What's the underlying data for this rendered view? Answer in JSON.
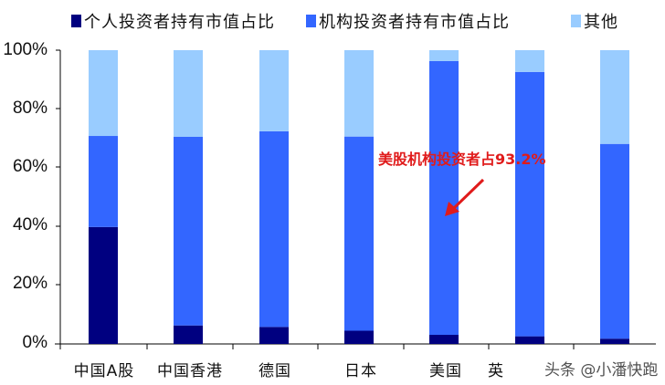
{
  "chart_data": {
    "type": "bar",
    "stacked": true,
    "title": "",
    "xlabel": "",
    "ylabel": "",
    "ylim": [
      0,
      100
    ],
    "yticks": [
      "0%",
      "20%",
      "40%",
      "60%",
      "80%",
      "100%"
    ],
    "categories": [
      "中国A股",
      "中国香港",
      "德国",
      "日本",
      "美国",
      "英国",
      ""
    ],
    "series": [
      {
        "name": "个人投资者持有市值占比",
        "color": "#000080",
        "values": [
          39.8,
          6.3,
          5.8,
          4.5,
          3.1,
          2.6,
          1.8
        ]
      },
      {
        "name": "机构投资者持有市值占比",
        "color": "#3366ff",
        "values": [
          31.0,
          64.2,
          66.6,
          66.1,
          93.2,
          90.0,
          66.3
        ]
      },
      {
        "name": "其他",
        "color": "#99ccff",
        "values": [
          29.2,
          29.5,
          27.6,
          29.4,
          3.7,
          7.4,
          31.9
        ]
      }
    ],
    "legend_position": "top",
    "grid": false,
    "annotations": [
      {
        "text": "美股机构投资者占93.2%",
        "color": "#e01b1b",
        "arrow_to": "美国"
      }
    ]
  },
  "legend": {
    "items": [
      {
        "label": "个人投资者持有市值占比",
        "color": "#000080"
      },
      {
        "label": "机构投资者持有市值占比",
        "color": "#3366ff"
      },
      {
        "label": "其他",
        "color": "#99ccff"
      }
    ]
  },
  "axis": {
    "y_labels": [
      "100%",
      "80%",
      "60%",
      "40%",
      "20%",
      "0%"
    ],
    "x_labels": [
      "中国A股",
      "中国香港",
      "德国",
      "日本",
      "美国",
      "英"
    ]
  },
  "annotation": {
    "text": "美股机构投资者占93.2%"
  },
  "watermark": {
    "text": "头条 @小潘快跑"
  }
}
